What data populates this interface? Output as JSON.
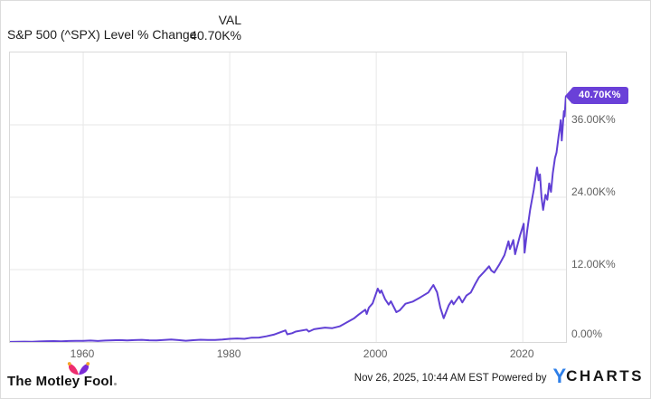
{
  "header": {
    "series_label": "S&P 500 (^SPX) Level % Change",
    "val_column_label": "VAL",
    "val_value": "40.70K%"
  },
  "value_flag": {
    "text": "40.70K%"
  },
  "footer": {
    "motley_fool_text": "The Motley Fool",
    "timestamp": "Nov 26, 2025, 10:44 AM EST",
    "powered_by": "Powered by",
    "ycharts_y": "Y",
    "ycharts_rest": "CHARTS"
  },
  "colors": {
    "line": "#6140d5",
    "flag_bg": "#6a40d8",
    "grid": "#e7e7e7",
    "plot_border": "#d9d9d9",
    "axis_text": "#616161",
    "fool_pink": "#ee2d6e",
    "fool_purple": "#7a2bd6",
    "fool_gold": "#f4a62a",
    "ycharts_blue": "#2e7fe8"
  },
  "chart_data": {
    "type": "line",
    "title": "S&P 500 (^SPX) Level % Change",
    "current_value_label": "40.70K%",
    "legend_position": "none",
    "grid": true,
    "x_ticks": [
      1960,
      1980,
      2000,
      2020
    ],
    "y_ticks": [
      {
        "v": 0,
        "label": "0.00%"
      },
      {
        "v": 12,
        "label": "12.00K%"
      },
      {
        "v": 24,
        "label": "24.00K%"
      },
      {
        "v": 36,
        "label": "36.00K%"
      }
    ],
    "y_unit": "K% (thousand percent change)",
    "xlim": [
      1950,
      2025.9
    ],
    "ylim": [
      0,
      48
    ],
    "points": [
      [
        1950.0,
        0.02
      ],
      [
        1951,
        0.04
      ],
      [
        1952,
        0.06
      ],
      [
        1953,
        0.05
      ],
      [
        1954,
        0.09
      ],
      [
        1955,
        0.13
      ],
      [
        1956,
        0.15
      ],
      [
        1957,
        0.11
      ],
      [
        1958,
        0.16
      ],
      [
        1959,
        0.19
      ],
      [
        1960,
        0.18
      ],
      [
        1961,
        0.24
      ],
      [
        1962,
        0.17
      ],
      [
        1963,
        0.24
      ],
      [
        1964,
        0.28
      ],
      [
        1965,
        0.31
      ],
      [
        1966,
        0.25
      ],
      [
        1967,
        0.32
      ],
      [
        1968,
        0.36
      ],
      [
        1969,
        0.29
      ],
      [
        1970,
        0.26
      ],
      [
        1971,
        0.34
      ],
      [
        1972,
        0.4
      ],
      [
        1973,
        0.32
      ],
      [
        1974,
        0.21
      ],
      [
        1975,
        0.3
      ],
      [
        1976,
        0.38
      ],
      [
        1977,
        0.34
      ],
      [
        1978,
        0.35
      ],
      [
        1979,
        0.42
      ],
      [
        1980,
        0.53
      ],
      [
        1981,
        0.58
      ],
      [
        1982,
        0.52
      ],
      [
        1983,
        0.72
      ],
      [
        1984,
        0.74
      ],
      [
        1985,
        0.95
      ],
      [
        1986,
        1.22
      ],
      [
        1987.6,
        1.92
      ],
      [
        1987.85,
        1.28
      ],
      [
        1988.5,
        1.45
      ],
      [
        1989,
        1.72
      ],
      [
        1990.5,
        2.05
      ],
      [
        1990.8,
        1.72
      ],
      [
        1991.5,
        2.12
      ],
      [
        1992,
        2.2
      ],
      [
        1993,
        2.38
      ],
      [
        1994,
        2.3
      ],
      [
        1995,
        2.6
      ],
      [
        1996,
        3.25
      ],
      [
        1997,
        3.95
      ],
      [
        1997.6,
        4.55
      ],
      [
        1998.5,
        5.35
      ],
      [
        1998.7,
        4.65
      ],
      [
        1999,
        5.7
      ],
      [
        1999.5,
        6.4
      ],
      [
        2000.2,
        8.85
      ],
      [
        2000.5,
        8.15
      ],
      [
        2000.7,
        8.55
      ],
      [
        2001.2,
        7.1
      ],
      [
        2001.7,
        6.2
      ],
      [
        2002.0,
        6.75
      ],
      [
        2002.75,
        4.95
      ],
      [
        2003.2,
        5.25
      ],
      [
        2004,
        6.35
      ],
      [
        2005,
        6.7
      ],
      [
        2006,
        7.4
      ],
      [
        2007.1,
        8.2
      ],
      [
        2007.8,
        9.45
      ],
      [
        2008.3,
        8.25
      ],
      [
        2008.75,
        5.7
      ],
      [
        2009.2,
        3.95
      ],
      [
        2009.9,
        6.1
      ],
      [
        2010.3,
        6.85
      ],
      [
        2010.55,
        6.25
      ],
      [
        2011.3,
        7.55
      ],
      [
        2011.75,
        6.55
      ],
      [
        2012.3,
        7.7
      ],
      [
        2012.9,
        8.2
      ],
      [
        2013.5,
        9.6
      ],
      [
        2014,
        10.7
      ],
      [
        2014.7,
        11.6
      ],
      [
        2015.4,
        12.55
      ],
      [
        2015.7,
        11.85
      ],
      [
        2016.1,
        11.5
      ],
      [
        2016.8,
        12.85
      ],
      [
        2017.5,
        14.4
      ],
      [
        2018.05,
        16.7
      ],
      [
        2018.25,
        15.4
      ],
      [
        2018.7,
        16.9
      ],
      [
        2018.95,
        14.55
      ],
      [
        2019.6,
        17.6
      ],
      [
        2020.12,
        19.6
      ],
      [
        2020.25,
        14.8
      ],
      [
        2020.6,
        18.5
      ],
      [
        2021.0,
        21.9
      ],
      [
        2021.5,
        25.2
      ],
      [
        2021.95,
        28.9
      ],
      [
        2022.15,
        26.8
      ],
      [
        2022.35,
        27.8
      ],
      [
        2022.55,
        24.0
      ],
      [
        2022.78,
        21.9
      ],
      [
        2023.1,
        24.4
      ],
      [
        2023.35,
        23.6
      ],
      [
        2023.6,
        26.3
      ],
      [
        2023.85,
        24.9
      ],
      [
        2024.1,
        28.0
      ],
      [
        2024.4,
        30.5
      ],
      [
        2024.6,
        31.4
      ],
      [
        2024.9,
        34.2
      ],
      [
        2025.05,
        35.4
      ],
      [
        2025.18,
        36.8
      ],
      [
        2025.32,
        33.4
      ],
      [
        2025.5,
        36.6
      ],
      [
        2025.62,
        38.3
      ],
      [
        2025.72,
        37.4
      ],
      [
        2025.88,
        40.7
      ]
    ]
  }
}
